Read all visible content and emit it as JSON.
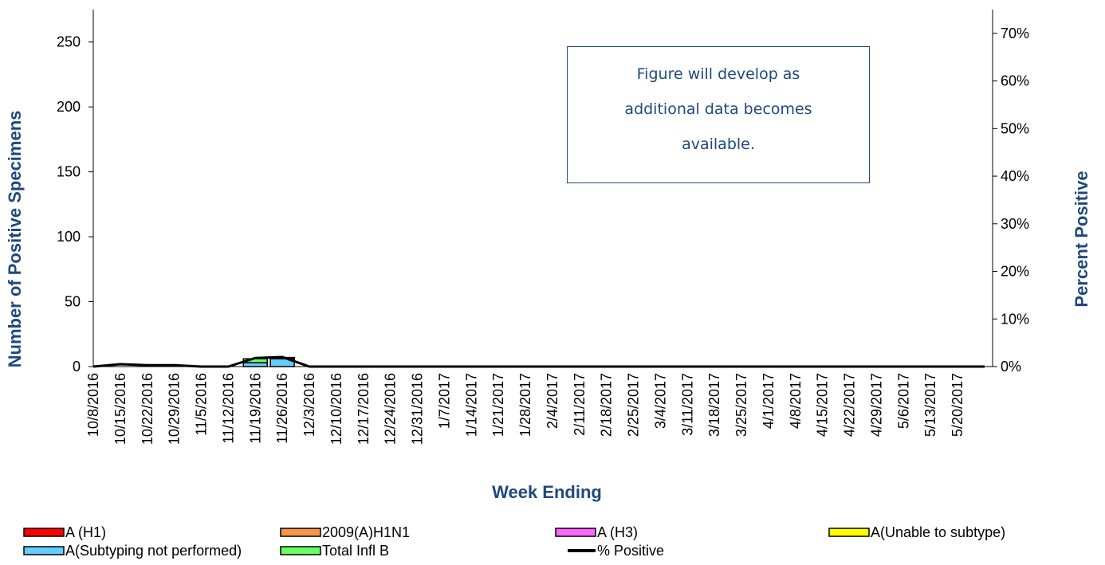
{
  "chart_data": {
    "type": "bar",
    "stacked": true,
    "x_label": "Week Ending",
    "y_label": "Number of  Positive Specimens",
    "y2_label": "Percent Positive",
    "annotation": "Figure will develop as additional data becomes available.",
    "categories": [
      "10/8/2016",
      "10/15/2016",
      "10/22/2016",
      "10/29/2016",
      "11/5/2016",
      "11/12/2016",
      "11/19/2016",
      "11/26/2016",
      "12/3/2016",
      "12/10/2016",
      "12/17/2016",
      "12/24/2016",
      "12/31/2016",
      "1/7/2017",
      "1/14/2017",
      "1/21/2017",
      "1/28/2017",
      "2/4/2017",
      "2/11/2017",
      "2/18/2017",
      "2/25/2017",
      "3/4/2017",
      "3/11/2017",
      "3/18/2017",
      "3/25/2017",
      "4/1/2017",
      "4/8/2017",
      "4/15/2017",
      "4/22/2017",
      "4/29/2017",
      "5/6/2017",
      "5/13/2017",
      "5/20/2017",
      null
    ],
    "series": [
      {
        "name": "A (H1)",
        "color": "#ff0000",
        "values": [
          0,
          0,
          0,
          0,
          0,
          0,
          0,
          0,
          0,
          0,
          0,
          0,
          0,
          0,
          0,
          0,
          0,
          0,
          0,
          0,
          0,
          0,
          0,
          0,
          0,
          0,
          0,
          0,
          0,
          0,
          0,
          0,
          0,
          0
        ]
      },
      {
        "name": "2009(A)H1N1",
        "color": "#f79646",
        "values": [
          0,
          0,
          0,
          0,
          0,
          0,
          0,
          0,
          0,
          0,
          0,
          0,
          0,
          0,
          0,
          0,
          0,
          0,
          0,
          0,
          0,
          0,
          0,
          0,
          0,
          0,
          0,
          0,
          0,
          0,
          0,
          0,
          0,
          0
        ]
      },
      {
        "name": "A (H3)",
        "color": "#ff66ff",
        "values": [
          0,
          0,
          0,
          0,
          0,
          0,
          0,
          0,
          0,
          0,
          0,
          0,
          0,
          0,
          0,
          0,
          0,
          0,
          0,
          0,
          0,
          0,
          0,
          0,
          0,
          0,
          0,
          0,
          0,
          0,
          0,
          0,
          0,
          0
        ]
      },
      {
        "name": "A(Unable to subtype)",
        "color": "#ffff00",
        "values": [
          0,
          0,
          0,
          0,
          0,
          0,
          0,
          0,
          0,
          0,
          0,
          0,
          0,
          0,
          0,
          0,
          0,
          0,
          0,
          0,
          0,
          0,
          0,
          0,
          0,
          0,
          0,
          0,
          0,
          0,
          0,
          0,
          0,
          0
        ]
      },
      {
        "name": "A(Subtyping not performed)",
        "color": "#66ccff",
        "values": [
          0,
          0,
          0,
          0,
          0,
          0,
          3,
          6,
          0,
          0,
          0,
          0,
          0,
          0,
          0,
          0,
          0,
          0,
          0,
          0,
          0,
          0,
          0,
          0,
          0,
          0,
          0,
          0,
          0,
          0,
          0,
          0,
          0,
          0
        ]
      },
      {
        "name": "Total Infl B",
        "color": "#66ff66",
        "values": [
          0,
          0,
          0,
          0,
          0,
          0,
          3,
          1,
          0,
          0,
          0,
          0,
          0,
          0,
          0,
          0,
          0,
          0,
          0,
          0,
          0,
          0,
          0,
          0,
          0,
          0,
          0,
          0,
          0,
          0,
          0,
          0,
          0,
          0
        ]
      },
      {
        "name": "% Positive",
        "color": "#000000",
        "type": "line",
        "axis": "y2",
        "values": [
          0,
          0.5,
          0.3,
          0.3,
          0,
          0,
          1.8,
          2,
          0,
          0,
          0,
          0,
          0,
          0,
          0,
          0,
          0,
          0,
          0,
          0,
          0,
          0,
          0,
          0,
          0,
          0,
          0,
          0,
          0,
          0,
          0,
          0,
          0,
          0
        ]
      }
    ],
    "ylim": [
      0,
      275
    ],
    "yticks": [
      0,
      50,
      100,
      150,
      200,
      250
    ],
    "y2lim": [
      0,
      75
    ],
    "y2ticks": [
      {
        "value": 0,
        "label": "0%"
      },
      {
        "value": 10,
        "label": "10%"
      },
      {
        "value": 20,
        "label": "20%"
      },
      {
        "value": 30,
        "label": "30%"
      },
      {
        "value": 40,
        "label": "40%"
      },
      {
        "value": 50,
        "label": "50%"
      },
      {
        "value": 60,
        "label": "60%"
      },
      {
        "value": 70,
        "label": "70%"
      }
    ],
    "grid": false,
    "legend": "bottom"
  }
}
